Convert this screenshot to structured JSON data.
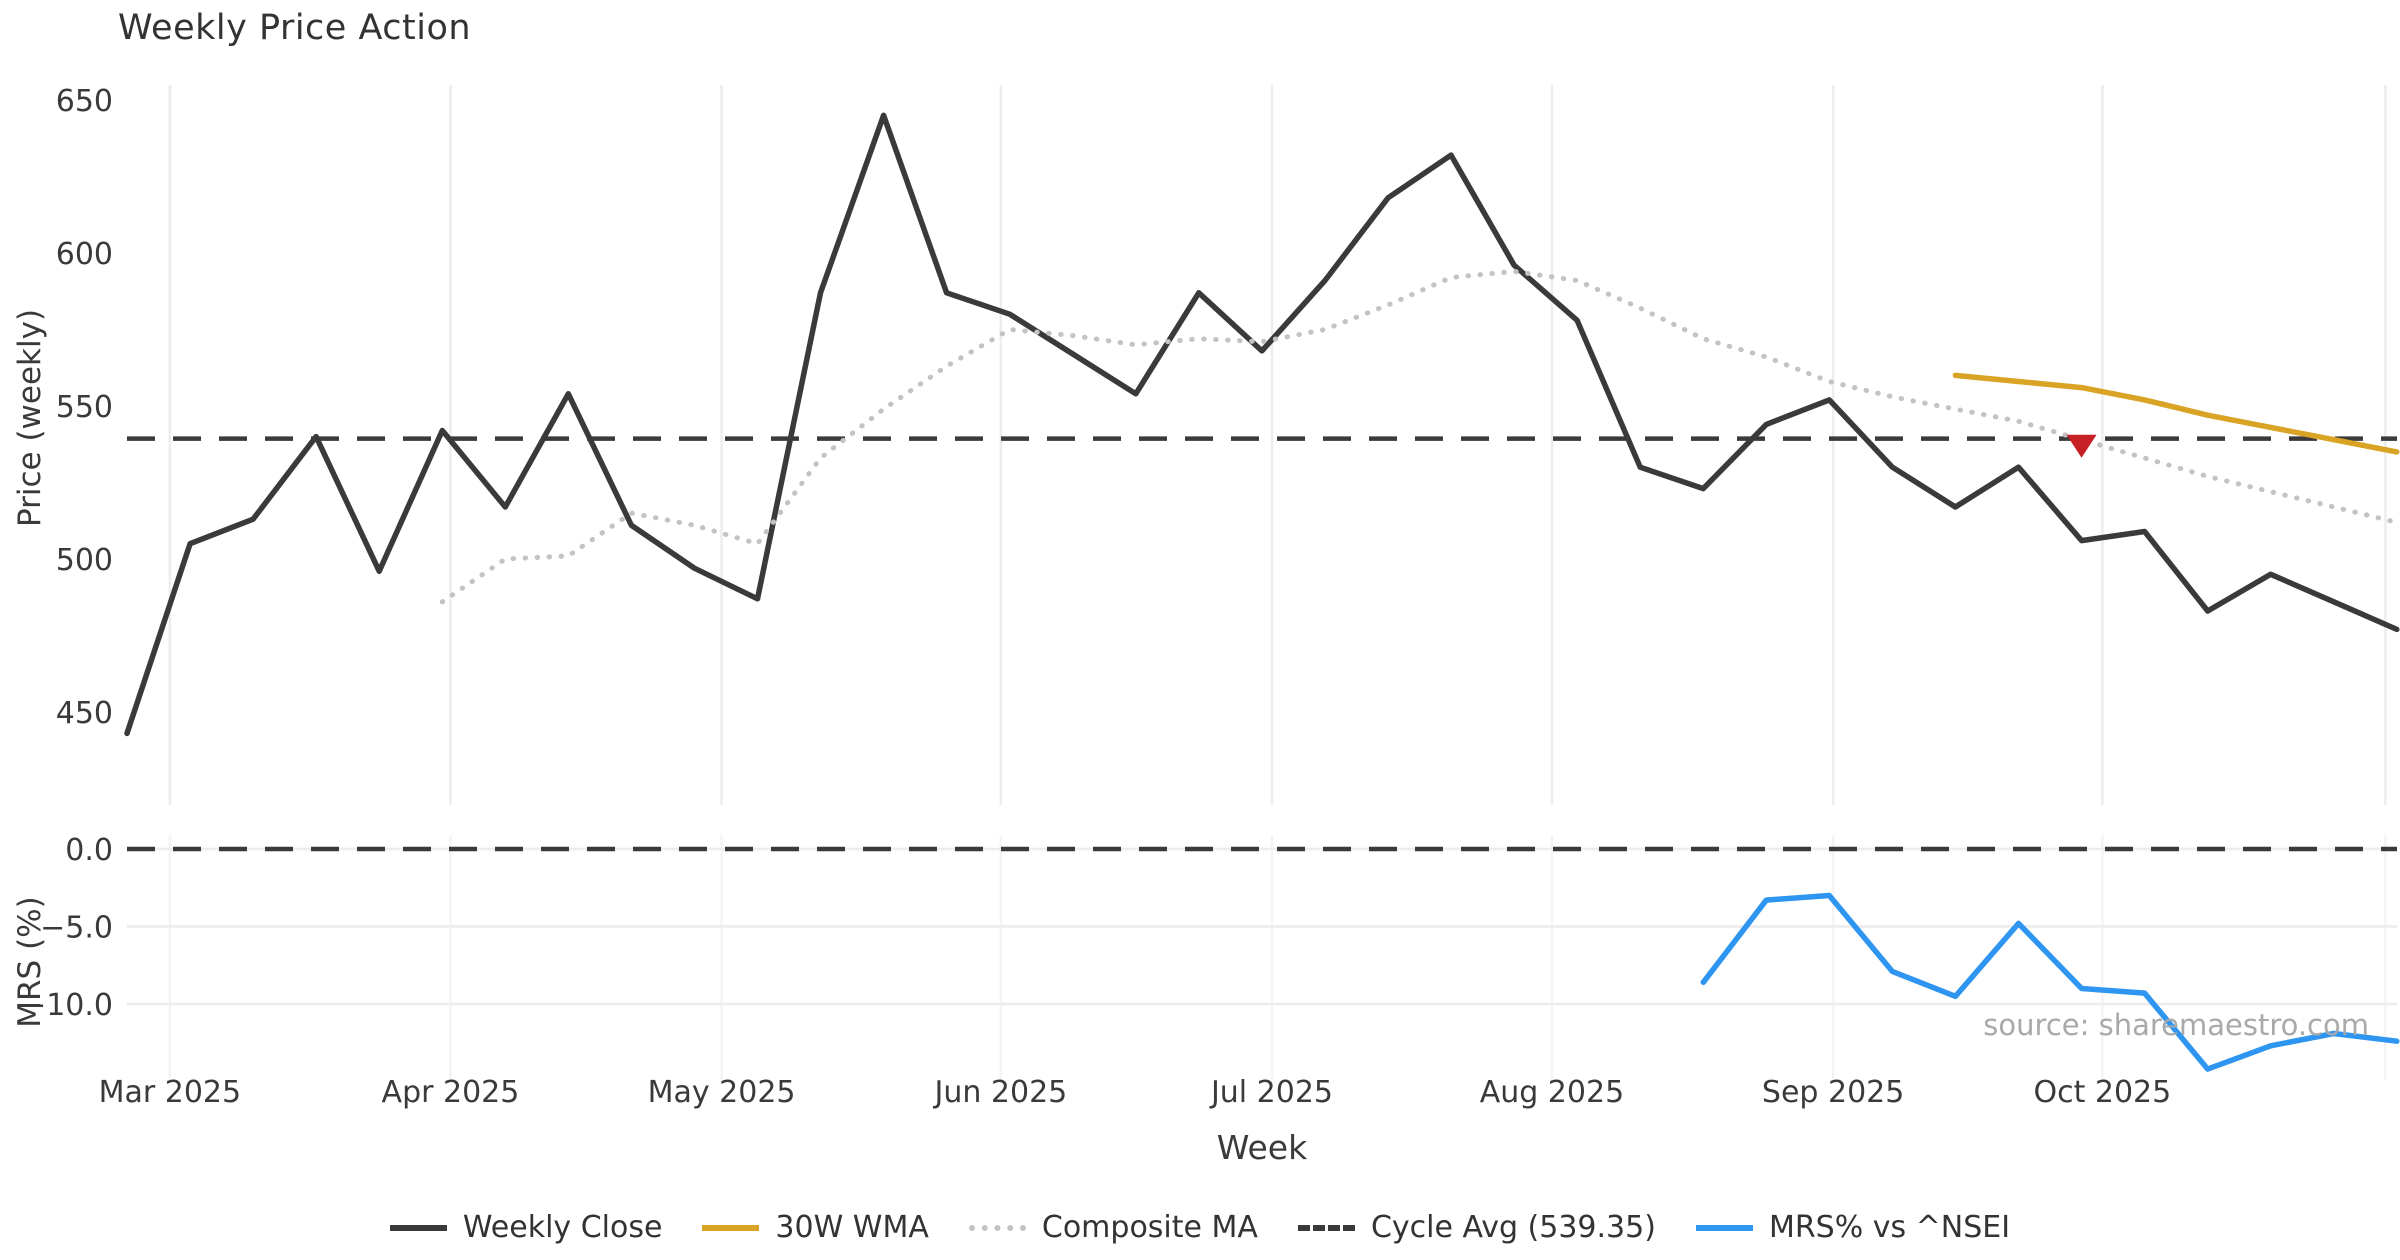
{
  "title": "Weekly Price Action",
  "source_text": "source: sharemaestro.com",
  "colors": {
    "weekly_close": "#3a3a3a",
    "wma_30": "#d9a425",
    "composite_ma": "#c3c3c3",
    "cycle_avg": "#3a3a3a",
    "mrs": "#2e96f0",
    "marker": "#c62026",
    "gridline_v": "#ededed",
    "gridline_v_mrs": "#f4f4f4",
    "gridline_h_mrs": "#ececec",
    "tick_text": "#3a3a3a"
  },
  "legend": {
    "items": [
      {
        "label": "Weekly Close",
        "style": "solid",
        "color": "#3a3a3a"
      },
      {
        "label": "30W WMA",
        "style": "solid",
        "color": "#d9a425"
      },
      {
        "label": "Composite MA",
        "style": "dotted",
        "color": "#c3c3c3"
      },
      {
        "label": "Cycle Avg (539.35)",
        "style": "dashed",
        "color": "#3a3a3a"
      },
      {
        "label": "MRS% vs ^NSEI",
        "style": "solid",
        "color": "#2e96f0"
      }
    ]
  },
  "chart_data": {
    "type": "line",
    "title": "Weekly Price Action",
    "xlabel": "Week",
    "panels": [
      {
        "name": "price",
        "ylabel": "Price (weekly)",
        "yticks": [
          {
            "v": 650,
            "label": "650"
          },
          {
            "v": 600,
            "label": "600"
          },
          {
            "v": 550,
            "label": "550"
          },
          {
            "v": 500,
            "label": "500"
          },
          {
            "v": 450,
            "label": "450"
          }
        ],
        "ylim": [
          420,
          665
        ],
        "grid": "vertical-months-only"
      },
      {
        "name": "mrs",
        "ylabel": "MRS (%)",
        "yticks": [
          {
            "v": 0,
            "label": "0.0"
          },
          {
            "v": -5,
            "label": "−5.0"
          },
          {
            "v": -10,
            "label": "−10.0"
          }
        ],
        "ylim": [
          -15.2,
          0.9
        ],
        "grid": "horizontal-and-faint-vertical"
      }
    ],
    "x_axis": {
      "unit": "week_index",
      "weeks_total": 37,
      "month_ticks": [
        {
          "label": "Mar 2025",
          "week_x": 0.68
        },
        {
          "label": "Apr 2025",
          "week_x": 5.13
        },
        {
          "label": "May 2025",
          "week_x": 9.43
        },
        {
          "label": "Jun 2025",
          "week_x": 13.86
        },
        {
          "label": "Jul 2025",
          "week_x": 18.16
        },
        {
          "label": "Aug 2025",
          "week_x": 22.6
        },
        {
          "label": "Sep 2025",
          "week_x": 27.06
        },
        {
          "label": "Oct 2025",
          "week_x": 31.33
        },
        {
          "label": "",
          "week_x": 35.82
        }
      ]
    },
    "series": [
      {
        "name": "Weekly Close",
        "panel": "price",
        "color": "#3a3a3a",
        "style": "solid",
        "width": 5.5,
        "start_index": 0,
        "values": [
          443,
          505,
          513,
          540,
          496,
          542,
          517,
          554,
          511,
          497,
          487,
          587,
          645,
          587,
          580,
          567,
          554,
          587,
          568,
          591,
          618,
          632,
          596,
          578,
          530,
          523,
          544,
          552,
          530,
          517,
          530,
          506,
          509,
          483,
          495,
          486,
          477
        ]
      },
      {
        "name": "Composite MA",
        "panel": "price",
        "color": "#c3c3c3",
        "style": "dotted",
        "width": 5,
        "start_index": 5,
        "values": [
          486,
          500,
          501,
          515,
          511,
          505,
          533,
          549,
          563,
          575,
          573,
          570,
          572,
          571,
          575,
          583,
          592,
          594,
          591,
          582,
          572,
          566,
          558,
          553,
          549,
          545,
          539,
          533,
          527,
          522,
          517,
          512
        ]
      },
      {
        "name": "30W WMA",
        "panel": "price",
        "color": "#d9a425",
        "style": "solid",
        "width": 5.5,
        "start_index": 29,
        "values": [
          560,
          558,
          556,
          552,
          547,
          543,
          539,
          535
        ]
      },
      {
        "name": "Cycle Avg",
        "panel": "price",
        "color": "#3a3a3a",
        "style": "dashed",
        "width": 4.5,
        "value": 539.35
      },
      {
        "name": "MRS% vs ^NSEI",
        "panel": "mrs",
        "color": "#2e96f0",
        "style": "solid",
        "width": 5.5,
        "start_index": 25,
        "values": [
          -8.6,
          -3.3,
          -3.0,
          -7.9,
          -9.5,
          -4.8,
          -9.0,
          -9.3,
          -14.2,
          -12.7,
          -11.9,
          -12.4
        ]
      }
    ],
    "reference_lines": [
      {
        "panel": "price",
        "value": 539.35,
        "style": "dashed",
        "color": "#3a3a3a",
        "meaning": "cycle average"
      },
      {
        "panel": "mrs",
        "value": 0.0,
        "style": "dashed",
        "color": "#3a3a3a",
        "meaning": "zero line"
      }
    ],
    "marker": {
      "type": "triangle-down",
      "color": "#c62026",
      "week_index": 31,
      "price": 537,
      "meaning": "cross-down signal"
    }
  }
}
